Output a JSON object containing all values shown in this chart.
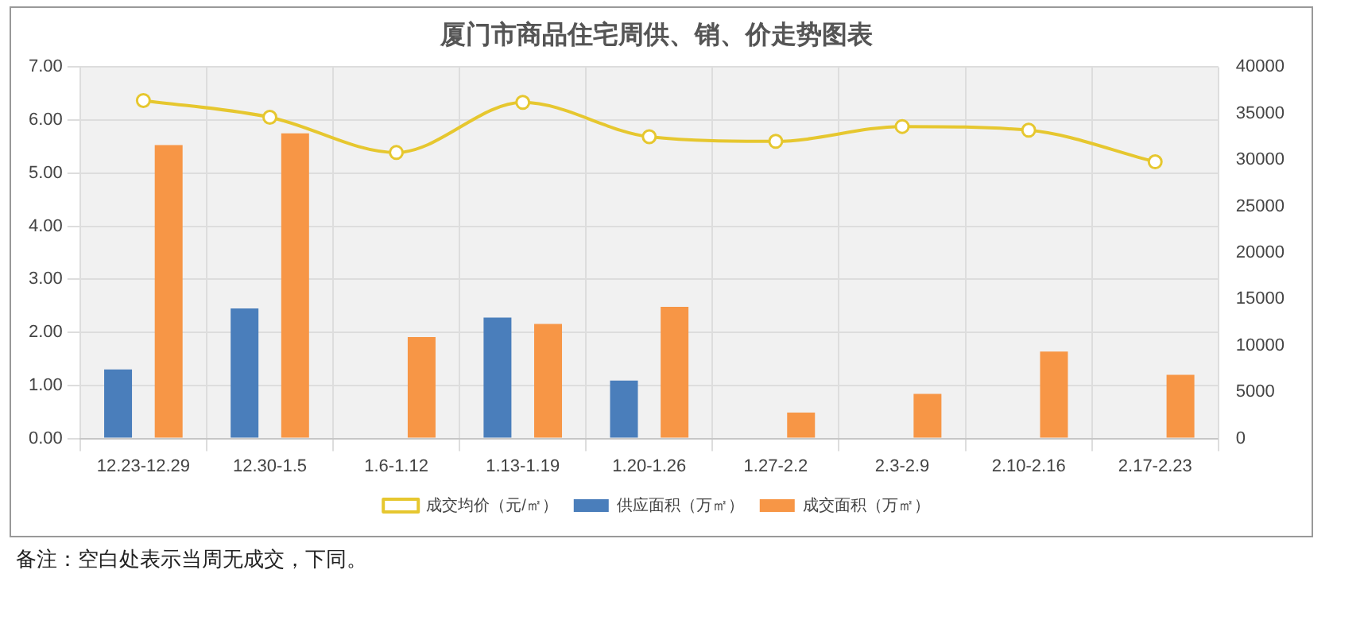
{
  "chart_data": {
    "type": "bar",
    "title": "厦门市商品住宅周供、销、价走势图表",
    "categories": [
      "12.23-12.29",
      "12.30-1.5",
      "1.6-1.12",
      "1.13-1.19",
      "1.20-1.26",
      "1.27-2.2",
      "2.3-2.9",
      "2.10-2.16",
      "2.17-2.23"
    ],
    "series": [
      {
        "name": "供应面积（万㎡）",
        "color": "#4a7ebb",
        "values": [
          1.3,
          2.45,
          null,
          2.28,
          1.09,
          null,
          null,
          null,
          null
        ]
      },
      {
        "name": "成交面积（万㎡）",
        "color": "#f79646",
        "values": [
          5.53,
          5.75,
          1.91,
          2.16,
          2.48,
          0.49,
          0.84,
          1.64,
          1.2
        ]
      },
      {
        "name": "成交均价（元/㎡）",
        "color": "#e6c72f",
        "type": "line",
        "axis": "y2",
        "marker": "circle",
        "values": [
          36400,
          34600,
          30800,
          36200,
          32500,
          32000,
          33600,
          33200,
          29800
        ]
      }
    ],
    "ylim": [
      0,
      7
    ],
    "yticks": [
      {
        "value": 0,
        "label": "0.00"
      },
      {
        "value": 1,
        "label": "1.00"
      },
      {
        "value": 2,
        "label": "2.00"
      },
      {
        "value": 3,
        "label": "3.00"
      },
      {
        "value": 4,
        "label": "4.00"
      },
      {
        "value": 5,
        "label": "5.00"
      },
      {
        "value": 6,
        "label": "6.00"
      },
      {
        "value": 7,
        "label": "7.00"
      }
    ],
    "y2lim": [
      0,
      40000
    ],
    "y2ticks": [
      0,
      5000,
      10000,
      15000,
      20000,
      25000,
      30000,
      35000,
      40000
    ],
    "grid": true,
    "legend": "bottom",
    "annotations": [
      "备注：空白处表示当周无成交，下同。"
    ]
  }
}
